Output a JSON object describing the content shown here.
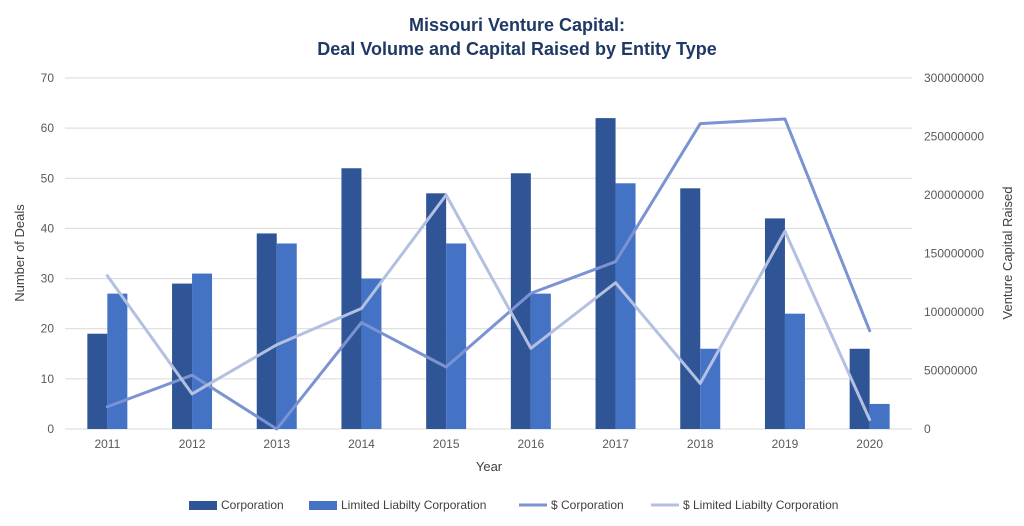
{
  "chart_data": {
    "type": "bar",
    "title_lines": [
      "Missouri Venture Capital:",
      "Deal Volume and Capital Raised by Entity Type"
    ],
    "xlabel": "Year",
    "ylabel": "Number of Deals",
    "y2label": "Venture Capital Raised",
    "categories": [
      "2011",
      "2012",
      "2013",
      "2014",
      "2015",
      "2016",
      "2017",
      "2018",
      "2019",
      "2020"
    ],
    "ylim": [
      0,
      70
    ],
    "yticks": [
      "0",
      "10",
      "20",
      "30",
      "40",
      "50",
      "60",
      "70"
    ],
    "y2lim": [
      0,
      300000000
    ],
    "y2ticks": [
      "0",
      "50000000",
      "100000000",
      "150000000",
      "200000000",
      "250000000",
      "300000000"
    ],
    "grid": true,
    "legend_position": "bottom",
    "series": [
      {
        "name": "Corporation",
        "kind": "bar",
        "axis": "left",
        "color": "#2f5597",
        "values": [
          19,
          29,
          39,
          52,
          47,
          51,
          62,
          48,
          42,
          16
        ]
      },
      {
        "name": "Limited Liabilty Corporation",
        "kind": "bar",
        "axis": "left",
        "color": "#4472c4",
        "values": [
          27,
          31,
          37,
          30,
          37,
          27,
          49,
          16,
          23,
          5
        ]
      },
      {
        "name": "$ Corporation",
        "kind": "line",
        "axis": "right",
        "color": "#7b93d2",
        "values": [
          19000000,
          46000000,
          0,
          91000000,
          53000000,
          116000000,
          143000000,
          261000000,
          265000000,
          84000000
        ]
      },
      {
        "name": "$ Limited Liabilty Corporation",
        "kind": "line",
        "axis": "right",
        "color": "#b4c0e2",
        "values": [
          131000000,
          30000000,
          72000000,
          103000000,
          200000000,
          69000000,
          125000000,
          39000000,
          169000000,
          8000000
        ]
      }
    ]
  }
}
